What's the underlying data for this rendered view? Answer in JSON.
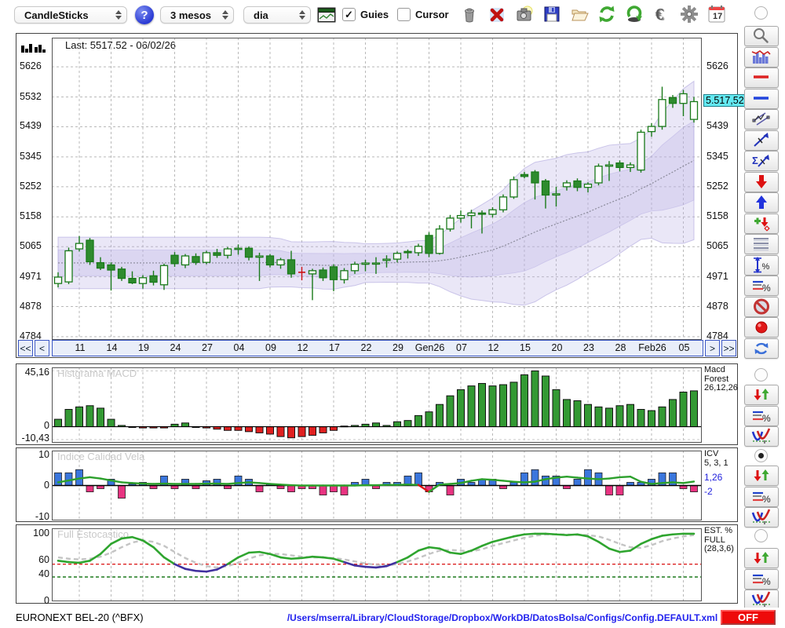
{
  "toolbar": {
    "chart_type_select": "CandleSticks",
    "help_label": "?",
    "period_select": "3 mesos",
    "interval_select": "dia",
    "guies_label": "Guies",
    "guies_checked": true,
    "cursor_label": "Cursor",
    "cursor_checked": false,
    "check_glyph": "✓",
    "icons": [
      "trash-icon",
      "delete-x-icon",
      "snapshot-icon",
      "save-icon",
      "open-folder-icon",
      "refresh-green-icon",
      "sync-green-icon",
      "euro-icon",
      "settings-gear-icon",
      "calendar-icon"
    ],
    "calendar_day": "17"
  },
  "main_chart": {
    "last_label": "Last: 5517.52 - 06/02/26",
    "y_ticks_left": [
      "5626",
      "5532",
      "5439",
      "5345",
      "5252",
      "5158",
      "5065",
      "4971",
      "4878",
      "4784"
    ],
    "y_ticks_right": [
      "5626",
      "5439",
      "5345",
      "5252",
      "5158",
      "5065",
      "4971",
      "4878",
      "4784"
    ],
    "highlight_price_label": "5.517,52",
    "nav": {
      "first": "<<",
      "prev": "<",
      "next": ">",
      "last": ">>"
    }
  },
  "macd_panel": {
    "title": "Histgrama MACD",
    "y_top": "45,16",
    "y_zero": "0",
    "y_bottom": "-10,43",
    "right_label_lines": [
      "Macd",
      "Forest",
      "26,12,26"
    ]
  },
  "icv_panel": {
    "title": "Indice Calidad Vela",
    "y_top": "10",
    "y_zero": "0",
    "y_bottom": "-10",
    "right_label_lines": [
      "ICV",
      "5, 3, 1"
    ],
    "right_values_blue": [
      "1,26",
      "-2"
    ]
  },
  "stoch_panel": {
    "title": "Full Estocastico",
    "y_labels": [
      "100",
      "60",
      "40",
      "0"
    ],
    "right_label_lines": [
      "EST. %",
      "FULL",
      "(28,3,6)"
    ]
  },
  "status": {
    "symbol": "EURONEXT BEL-20 (^BFX)",
    "config_path": "/Users/mserra/Library/CloudStorage/Dropbox/WorkDB/DatosBolsa/Configs/Config.DEFAULT.xml",
    "off_label": "OFF"
  },
  "sidebar": {
    "tools": [
      "zoom-tool-icon",
      "indicator-chart-icon",
      "red-hline-icon",
      "blue-hline-icon",
      "channel-icon",
      "trendline-icon",
      "sigma-trendline-icon",
      "arrow-down-red-icon",
      "arrow-up-blue-icon",
      "add-signal-icon",
      "levels-icon",
      "vertical-range-percent-icon",
      "lines-percent-icon",
      "forbidden-icon",
      "record-icon",
      "refresh-blue-icon"
    ],
    "panel_controls": [
      {
        "panel": "macd",
        "radio_checked": false,
        "buttons": [
          "updown-arrows-icon",
          "lines-percent-icon",
          "curve-icon"
        ]
      },
      {
        "panel": "icv",
        "radio_checked": true,
        "buttons": [
          "updown-arrows-icon",
          "lines-percent-icon",
          "curve-icon"
        ]
      },
      {
        "panel": "stoch",
        "radio_checked": false,
        "buttons": [
          "updown-arrows-icon",
          "lines-percent-icon",
          "curve-icon"
        ]
      }
    ],
    "main_radio_checked": false
  },
  "colors": {
    "candle_up_stroke": "#1a7a1a",
    "candle_down_fill": "#2e8b2e",
    "doji_red": "#cc1111",
    "band_fill": "#b9b0e4",
    "macd_pos": "#339933",
    "macd_neg": "#e02020",
    "icv_pos": "#3a76dd",
    "icv_neg": "#e83381",
    "icv_line": "#2ca02c",
    "stoch_k": "#2fa52f",
    "stoch_k_low": "#40309f",
    "stoch_d": "#c4c4c4",
    "highlight_cyan": "#63e9f2",
    "off_red": "#ee0a0a",
    "path_blue": "#2222ee"
  },
  "chart_data": [
    {
      "type": "candlestick",
      "title": "EURONEXT BEL-20 (^BFX)",
      "last": 5517.52,
      "last_date": "06/02/26",
      "ylim": [
        4774,
        5717
      ],
      "yticks": [
        5626,
        5532,
        5439,
        5345,
        5252,
        5158,
        5065,
        4971,
        4878,
        4784
      ],
      "x_tick_labels": [
        "11",
        "14",
        "19",
        "24",
        "27",
        "04",
        "09",
        "12",
        "17",
        "22",
        "29",
        "Gen26",
        "07",
        "12",
        "15",
        "20",
        "23",
        "28",
        "Feb26",
        "05"
      ],
      "overlay": "double bollinger band with dashed midline",
      "red_indices": [
        23
      ],
      "candles": [
        [
          4950,
          4985,
          4938,
          4970
        ],
        [
          4955,
          5062,
          4948,
          5052
        ],
        [
          5058,
          5098,
          5050,
          5075
        ],
        [
          5085,
          5092,
          5008,
          5018
        ],
        [
          5015,
          5032,
          4992,
          4998
        ],
        [
          5008,
          5016,
          4928,
          4992
        ],
        [
          4995,
          5002,
          4958,
          4966
        ],
        [
          4966,
          4988,
          4948,
          4952
        ],
        [
          4950,
          4976,
          4934,
          4968
        ],
        [
          4974,
          4990,
          4944,
          4954
        ],
        [
          4946,
          5012,
          4930,
          5006
        ],
        [
          5038,
          5048,
          5002,
          5012
        ],
        [
          5008,
          5042,
          4998,
          5036
        ],
        [
          5034,
          5044,
          5008,
          5016
        ],
        [
          5016,
          5052,
          5010,
          5046
        ],
        [
          5046,
          5058,
          5030,
          5038
        ],
        [
          5038,
          5064,
          5028,
          5058
        ],
        [
          5058,
          5072,
          5040,
          5060
        ],
        [
          5060,
          5066,
          5022,
          5032
        ],
        [
          5032,
          5046,
          4958,
          5036
        ],
        [
          5036,
          5042,
          5000,
          5008
        ],
        [
          5008,
          5030,
          4996,
          5024
        ],
        [
          5024,
          5052,
          4968,
          4980
        ],
        [
          4985,
          5002,
          4960,
          4985
        ],
        [
          4980,
          4996,
          4898,
          4990
        ],
        [
          4992,
          5000,
          4958,
          4968
        ],
        [
          5002,
          5010,
          4926,
          4962
        ],
        [
          4962,
          4998,
          4950,
          4990
        ],
        [
          4990,
          5018,
          4980,
          5010
        ],
        [
          5010,
          5024,
          4988,
          5014
        ],
        [
          5012,
          5032,
          4980,
          5014
        ],
        [
          5022,
          5038,
          5000,
          5026
        ],
        [
          5026,
          5050,
          5016,
          5044
        ],
        [
          5050,
          5056,
          5028,
          5046
        ],
        [
          5046,
          5074,
          5036,
          5066
        ],
        [
          5100,
          5110,
          5032,
          5044
        ],
        [
          5044,
          5132,
          5040,
          5120
        ],
        [
          5120,
          5164,
          5112,
          5154
        ],
        [
          5154,
          5178,
          5140,
          5162
        ],
        [
          5162,
          5180,
          5122,
          5170
        ],
        [
          5170,
          5178,
          5106,
          5166
        ],
        [
          5166,
          5188,
          5156,
          5180
        ],
        [
          5180,
          5228,
          5172,
          5220
        ],
        [
          5220,
          5284,
          5214,
          5274
        ],
        [
          5290,
          5298,
          5278,
          5284
        ],
        [
          5298,
          5304,
          5212,
          5264
        ],
        [
          5270,
          5276,
          5184,
          5226
        ],
        [
          5226,
          5252,
          5190,
          5230
        ],
        [
          5252,
          5272,
          5240,
          5264
        ],
        [
          5270,
          5278,
          5238,
          5250
        ],
        [
          5250,
          5266,
          5234,
          5260
        ],
        [
          5264,
          5324,
          5256,
          5316
        ],
        [
          5316,
          5332,
          5270,
          5320
        ],
        [
          5326,
          5334,
          5300,
          5312
        ],
        [
          5312,
          5328,
          5298,
          5320
        ],
        [
          5304,
          5430,
          5296,
          5422
        ],
        [
          5424,
          5450,
          5408,
          5440
        ],
        [
          5440,
          5564,
          5430,
          5524
        ],
        [
          5530,
          5538,
          5498,
          5512
        ],
        [
          5512,
          5554,
          5472,
          5542
        ],
        [
          5462,
          5532,
          5452,
          5517.5
        ]
      ]
    },
    {
      "type": "bar",
      "title": "Histgrama MACD",
      "params": "26,12,26",
      "ylim": [
        -10.43,
        45.16
      ],
      "values": [
        6,
        14,
        16,
        17,
        15,
        6,
        1,
        -0.5,
        -1,
        -1,
        -1,
        2,
        3,
        -0.5,
        -1,
        -2,
        -3,
        -3,
        -4,
        -5,
        -6,
        -8,
        -9,
        -8,
        -7,
        -5,
        -3,
        0.5,
        1,
        2,
        3,
        1,
        4,
        5,
        9,
        12,
        18,
        25,
        30,
        33,
        35,
        33,
        34,
        36,
        42,
        45.16,
        41,
        30,
        22,
        21,
        18,
        16,
        15,
        17,
        18,
        14,
        13,
        16,
        22,
        28,
        29
      ]
    },
    {
      "type": "bar+line",
      "title": "Indice Calidad Vela",
      "params": "5, 3, 1",
      "current_line": 1.26,
      "current_bar": -2,
      "ylim": [
        -10,
        10
      ],
      "bars": [
        4,
        4,
        5,
        -2,
        -1,
        2,
        -4,
        0.5,
        1,
        -1,
        3,
        -1,
        2,
        -1,
        1.5,
        2,
        -1,
        3,
        2,
        -2,
        0.5,
        -1,
        -2,
        -1,
        -1,
        -3,
        -2,
        -3,
        1,
        2,
        -1,
        1,
        1,
        3,
        4,
        -2,
        1,
        -3,
        2,
        1,
        2,
        2,
        -1,
        1,
        4,
        5,
        3,
        3,
        -1,
        2,
        5,
        4,
        -3,
        -3,
        1,
        1,
        2,
        4,
        4,
        -1,
        -2
      ],
      "line": [
        1,
        1.6,
        2.2,
        2.6,
        2.2,
        1.6,
        1,
        0.8,
        0.6,
        0.5,
        0.6,
        0.5,
        0.5,
        0.5,
        0.6,
        0.6,
        0.5,
        0.8,
        1,
        0.8,
        0.5,
        0.3,
        0.1,
        0,
        0,
        0,
        0,
        0,
        0,
        0.1,
        0.1,
        0.2,
        0.2,
        0.3,
        0.2,
        -2,
        0.3,
        0.5,
        0.8,
        1.5,
        2,
        1.8,
        1.5,
        1.2,
        1,
        1.2,
        2,
        2.5,
        2.8,
        2.5,
        2.2,
        2,
        2.2,
        2.6,
        2.8,
        1.2,
        0.5,
        0.8,
        1,
        0.8,
        1.26
      ],
      "line_red_segments": [
        [
          34,
          35
        ]
      ]
    },
    {
      "type": "line",
      "title": "Full Estocastico",
      "params": "(28,3,6)",
      "ylim": [
        0,
        100
      ],
      "hlines": [
        {
          "value": 55,
          "color": "red",
          "style": "dashed"
        },
        {
          "value": 36,
          "color": "green",
          "style": "dashed"
        }
      ],
      "series": [
        {
          "name": "%K",
          "values": [
            60,
            58,
            57,
            60,
            70,
            85,
            93,
            95,
            90,
            80,
            65,
            55,
            48,
            45,
            44,
            47,
            55,
            65,
            72,
            73,
            70,
            65,
            63,
            64,
            66,
            65,
            63,
            58,
            53,
            51,
            50,
            52,
            58,
            65,
            75,
            80,
            78,
            72,
            70,
            75,
            82,
            88,
            92,
            96,
            99,
            100,
            100,
            99,
            98,
            99,
            96,
            88,
            78,
            73,
            75,
            85,
            92,
            97,
            99,
            100,
            100
          ]
        },
        {
          "name": "%D",
          "values": [
            65,
            63,
            62,
            63,
            66,
            72,
            80,
            87,
            90,
            88,
            82,
            73,
            64,
            57,
            52,
            50,
            52,
            57,
            63,
            68,
            70,
            70,
            68,
            66,
            65,
            65,
            64,
            62,
            59,
            56,
            54,
            53,
            55,
            59,
            64,
            70,
            75,
            76,
            75,
            74,
            77,
            82,
            86,
            90,
            94,
            97,
            99,
            99,
            99,
            98,
            98,
            96,
            91,
            85,
            80,
            79,
            83,
            89,
            93,
            96,
            98
          ]
        }
      ]
    }
  ]
}
